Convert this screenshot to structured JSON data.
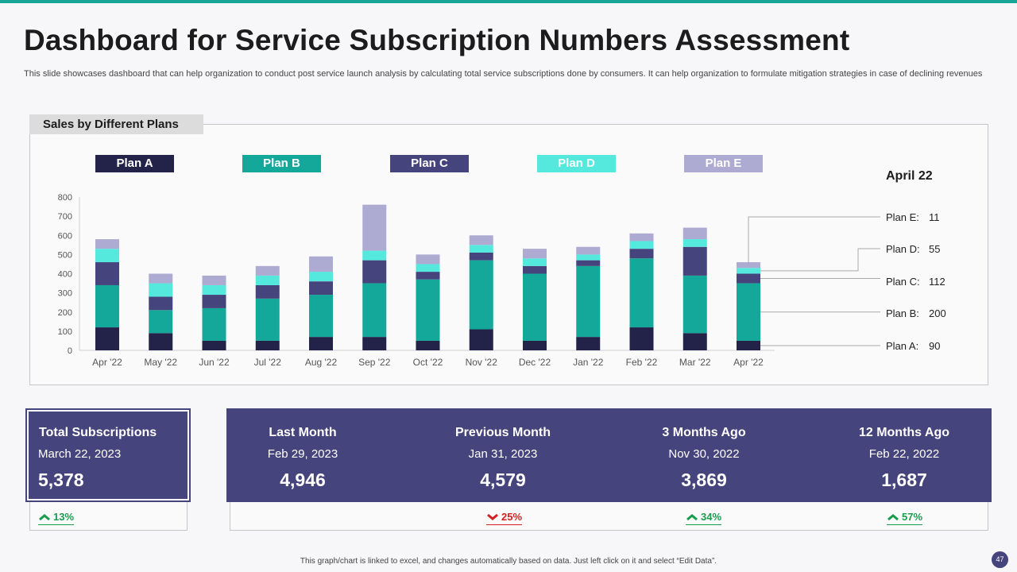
{
  "title": "Dashboard for Service Subscription Numbers Assessment",
  "subtitle": "This slide showcases dashboard that can help organization to conduct post service launch analysis by calculating total service subscriptions done by consumers. It can help organization to formulate mitigation strategies in case of declining revenues",
  "chart_tab": "Sales by Different Plans",
  "colors": {
    "planA": "#23234a",
    "planB": "#14a89a",
    "planC": "#46447c",
    "planD": "#55e8dc",
    "planE": "#aeabd2",
    "accent": "#16a596",
    "up": "#1a9c4e",
    "down": "#d42020"
  },
  "chart_data": {
    "type": "bar",
    "stacked": true,
    "title": "Sales by Different Plans",
    "categories": [
      "Apr '22",
      "May '22",
      "Jun '22",
      "Jul '22",
      "Aug '22",
      "Sep '22",
      "Oct '22",
      "Nov '22",
      "Dec '22",
      "Jan '22",
      "Feb '22",
      "Mar '22",
      "Apr '22"
    ],
    "ylim": [
      0,
      800
    ],
    "yticks": [
      0,
      100,
      200,
      300,
      400,
      500,
      600,
      700,
      800
    ],
    "series": [
      {
        "name": "Plan A",
        "values": [
          120,
          90,
          50,
          50,
          70,
          70,
          50,
          110,
          50,
          70,
          120,
          90,
          50
        ]
      },
      {
        "name": "Plan B",
        "values": [
          220,
          120,
          170,
          220,
          220,
          280,
          320,
          360,
          350,
          370,
          360,
          300,
          300
        ]
      },
      {
        "name": "Plan C",
        "values": [
          120,
          70,
          70,
          70,
          70,
          120,
          40,
          40,
          40,
          30,
          50,
          150,
          50
        ]
      },
      {
        "name": "Plan D",
        "values": [
          70,
          70,
          50,
          50,
          50,
          50,
          40,
          40,
          40,
          30,
          40,
          40,
          30
        ]
      },
      {
        "name": "Plan E",
        "values": [
          50,
          50,
          50,
          50,
          80,
          240,
          50,
          50,
          50,
          40,
          40,
          60,
          30
        ]
      }
    ]
  },
  "side_panel": {
    "title": "April 22",
    "items": [
      {
        "label": "Plan E:",
        "value": "11"
      },
      {
        "label": "Plan D:",
        "value": "55"
      },
      {
        "label": "Plan C:",
        "value": "112"
      },
      {
        "label": "Plan B:",
        "value": "200"
      },
      {
        "label": "Plan A:",
        "value": "90"
      }
    ]
  },
  "kpis": {
    "total": {
      "label": "Total Subscriptions",
      "date": "March 22, 2023",
      "value": "5,378",
      "change": "13%"
    },
    "last_month": {
      "label": "Last Month",
      "date": "Feb 29, 2023",
      "value": "4,946"
    },
    "previous_month": {
      "label": "Previous Month",
      "date": "Jan 31, 2023",
      "value": "4,579",
      "change": "25%"
    },
    "three_months": {
      "label": "3 Months Ago",
      "date": "Nov 30, 2022",
      "value": "3,869",
      "change": "34%"
    },
    "twelve_months": {
      "label": "12 Months Ago",
      "date": "Feb 22, 2022",
      "value": "1,687",
      "change": "57%"
    }
  },
  "footer": "This graph/chart is linked to excel, and changes automatically based on data. Just left click on it and select “Edit Data”.",
  "page_number": "47"
}
